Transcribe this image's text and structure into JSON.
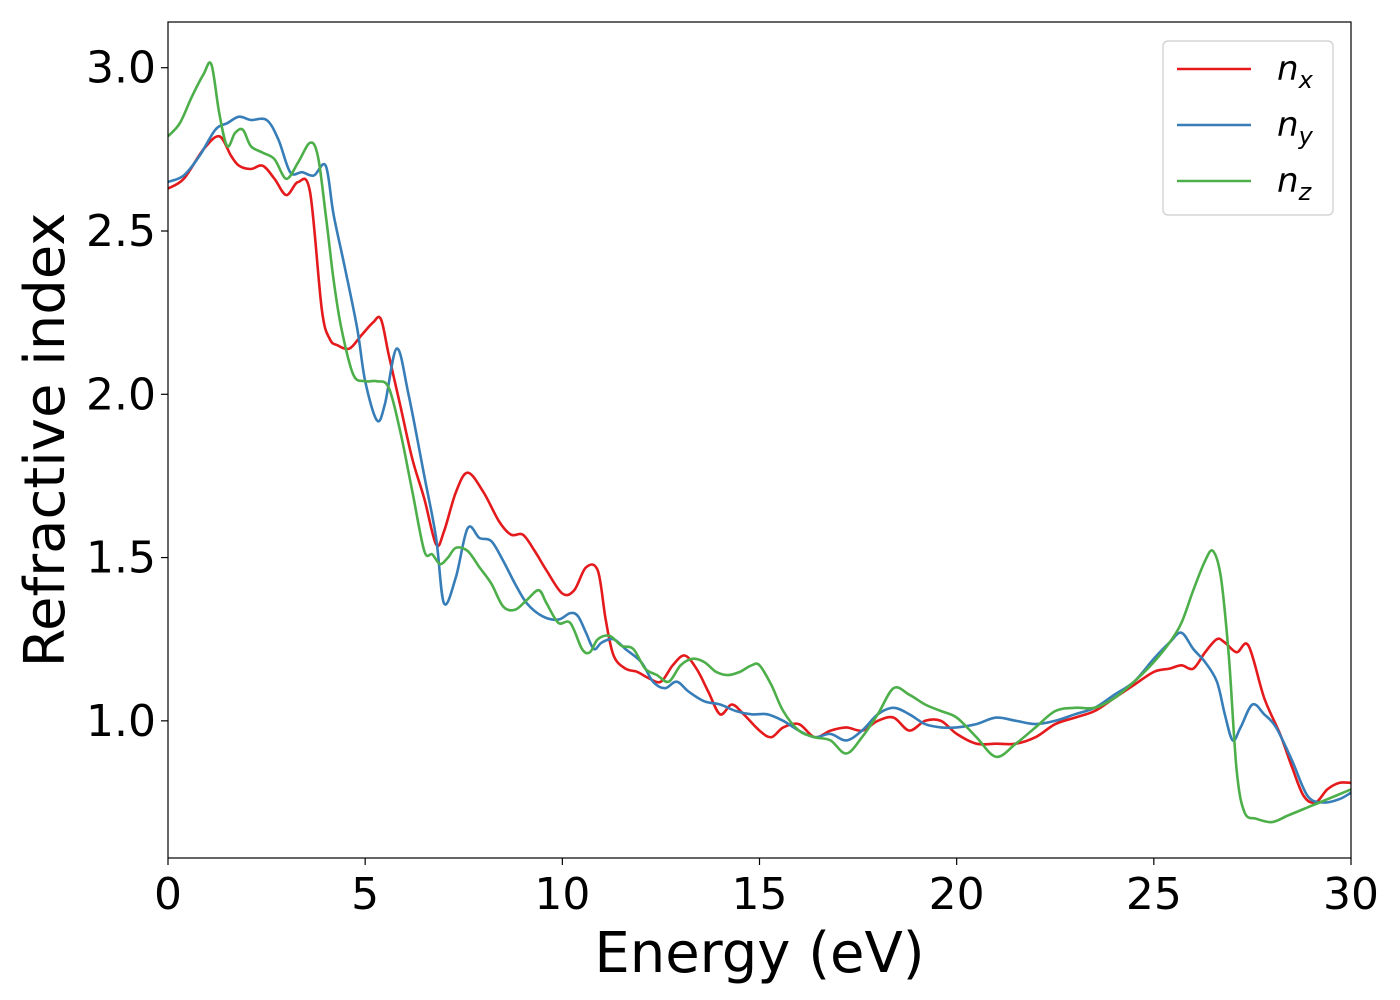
{
  "chart_data": {
    "type": "line",
    "xlabel": "Energy (eV)",
    "ylabel": "Refractive index",
    "xlim": [
      0,
      30
    ],
    "ylim": [
      0.58,
      3.14
    ],
    "xticks": [
      0,
      5,
      10,
      15,
      20,
      25,
      30
    ],
    "xtick_labels": [
      "0",
      "5",
      "10",
      "15",
      "20",
      "25",
      "30"
    ],
    "yticks": [
      1.0,
      1.5,
      2.0,
      2.5,
      3.0
    ],
    "ytick_labels": [
      "1.0",
      "1.5",
      "2.0",
      "2.5",
      "3.0"
    ],
    "grid": false,
    "legend_position": "top-right",
    "series": [
      {
        "name": "n",
        "subscript": "x",
        "color": "#e41a1c",
        "x": [
          0,
          0.4,
          0.9,
          1.3,
          1.6,
          1.8,
          2.1,
          2.4,
          2.7,
          3.0,
          3.3,
          3.6,
          3.9,
          4.1,
          4.3,
          4.6,
          4.9,
          5.2,
          5.4,
          5.6,
          5.9,
          6.2,
          6.5,
          6.8,
          7.0,
          7.3,
          7.6,
          8.0,
          8.4,
          8.7,
          9.0,
          9.3,
          9.6,
          10.0,
          10.3,
          10.6,
          10.9,
          11.1,
          11.3,
          11.6,
          11.9,
          12.2,
          12.5,
          12.8,
          13.1,
          13.4,
          13.7,
          14.0,
          14.3,
          14.6,
          15.0,
          15.3,
          15.6,
          16.0,
          16.4,
          16.8,
          17.2,
          17.6,
          18.0,
          18.4,
          18.8,
          19.2,
          19.6,
          20.0,
          20.5,
          21.0,
          21.5,
          22.0,
          22.5,
          23.0,
          23.5,
          24.0,
          24.5,
          25.0,
          25.4,
          25.7,
          26.0,
          26.3,
          26.6,
          26.8,
          27.1,
          27.4,
          27.8,
          28.2,
          28.5,
          28.8,
          29.1,
          29.4,
          29.7,
          30.0
        ],
        "y": [
          2.63,
          2.66,
          2.75,
          2.79,
          2.73,
          2.7,
          2.69,
          2.7,
          2.66,
          2.61,
          2.65,
          2.62,
          2.26,
          2.17,
          2.15,
          2.14,
          2.18,
          2.22,
          2.23,
          2.12,
          1.96,
          1.8,
          1.68,
          1.54,
          1.58,
          1.7,
          1.76,
          1.7,
          1.61,
          1.57,
          1.57,
          1.52,
          1.46,
          1.39,
          1.4,
          1.47,
          1.46,
          1.31,
          1.2,
          1.16,
          1.15,
          1.13,
          1.12,
          1.17,
          1.2,
          1.16,
          1.09,
          1.02,
          1.05,
          1.02,
          0.97,
          0.95,
          0.98,
          0.99,
          0.95,
          0.97,
          0.98,
          0.97,
          1.0,
          1.01,
          0.97,
          1.0,
          1.0,
          0.96,
          0.93,
          0.93,
          0.93,
          0.95,
          0.99,
          1.01,
          1.03,
          1.07,
          1.11,
          1.15,
          1.16,
          1.17,
          1.16,
          1.21,
          1.25,
          1.24,
          1.21,
          1.23,
          1.07,
          0.96,
          0.86,
          0.77,
          0.75,
          0.79,
          0.81,
          0.81
        ]
      },
      {
        "name": "n",
        "subscript": "y",
        "color": "#377eb8",
        "x": [
          0,
          0.4,
          0.8,
          1.2,
          1.5,
          1.8,
          2.1,
          2.5,
          2.8,
          3.1,
          3.4,
          3.7,
          4.0,
          4.2,
          4.5,
          4.8,
          5.0,
          5.3,
          5.5,
          5.8,
          6.1,
          6.5,
          6.8,
          7.0,
          7.3,
          7.6,
          7.9,
          8.2,
          8.5,
          8.8,
          9.1,
          9.5,
          9.9,
          10.2,
          10.4,
          10.6,
          10.8,
          11.0,
          11.3,
          11.6,
          12.0,
          12.3,
          12.6,
          12.9,
          13.2,
          13.6,
          14.0,
          14.4,
          14.8,
          15.2,
          15.6,
          16.0,
          16.4,
          16.8,
          17.2,
          17.6,
          18.0,
          18.4,
          18.8,
          19.2,
          19.6,
          20.0,
          20.5,
          21.0,
          21.5,
          22.0,
          22.5,
          23.0,
          23.5,
          24.0,
          24.5,
          25.0,
          25.4,
          25.7,
          26.0,
          26.3,
          26.6,
          26.8,
          27.0,
          27.2,
          27.5,
          27.8,
          28.1,
          28.5,
          28.9,
          29.3,
          29.7,
          30.0
        ],
        "y": [
          2.65,
          2.67,
          2.73,
          2.81,
          2.83,
          2.85,
          2.84,
          2.84,
          2.78,
          2.68,
          2.68,
          2.67,
          2.7,
          2.55,
          2.38,
          2.2,
          2.04,
          1.92,
          1.97,
          2.14,
          2.0,
          1.75,
          1.56,
          1.36,
          1.44,
          1.59,
          1.56,
          1.55,
          1.49,
          1.42,
          1.36,
          1.32,
          1.31,
          1.33,
          1.32,
          1.27,
          1.22,
          1.24,
          1.25,
          1.22,
          1.18,
          1.12,
          1.1,
          1.12,
          1.09,
          1.06,
          1.05,
          1.03,
          1.02,
          1.02,
          1.0,
          0.97,
          0.95,
          0.96,
          0.94,
          0.97,
          1.02,
          1.04,
          1.02,
          0.99,
          0.98,
          0.98,
          0.99,
          1.01,
          1.0,
          0.99,
          1.0,
          1.02,
          1.04,
          1.08,
          1.12,
          1.19,
          1.24,
          1.27,
          1.22,
          1.18,
          1.12,
          1.02,
          0.94,
          0.98,
          1.05,
          1.02,
          0.98,
          0.88,
          0.77,
          0.75,
          0.76,
          0.78
        ]
      },
      {
        "name": "n",
        "subscript": "z",
        "color": "#4daf4a",
        "x": [
          0,
          0.3,
          0.6,
          0.9,
          1.1,
          1.3,
          1.5,
          1.7,
          1.9,
          2.1,
          2.4,
          2.7,
          3.0,
          3.3,
          3.6,
          3.8,
          4.0,
          4.2,
          4.4,
          4.7,
          5.0,
          5.3,
          5.6,
          5.9,
          6.2,
          6.5,
          6.7,
          6.9,
          7.1,
          7.3,
          7.6,
          7.9,
          8.2,
          8.5,
          8.8,
          9.1,
          9.4,
          9.6,
          9.9,
          10.2,
          10.5,
          10.7,
          10.9,
          11.2,
          11.5,
          11.8,
          12.1,
          12.4,
          12.7,
          13.0,
          13.3,
          13.6,
          13.9,
          14.2,
          14.5,
          14.8,
          15.0,
          15.3,
          15.6,
          16.0,
          16.4,
          16.8,
          17.2,
          17.6,
          18.0,
          18.4,
          18.8,
          19.2,
          19.6,
          20.0,
          20.5,
          21.0,
          21.5,
          22.0,
          22.5,
          23.0,
          23.5,
          24.0,
          24.5,
          25.0,
          25.4,
          25.7,
          26.0,
          26.3,
          26.5,
          26.7,
          26.9,
          27.1,
          27.3,
          27.6,
          28.0,
          28.4,
          28.8,
          29.2,
          29.6,
          30.0
        ],
        "y": [
          2.79,
          2.83,
          2.91,
          2.98,
          3.01,
          2.86,
          2.76,
          2.8,
          2.81,
          2.76,
          2.74,
          2.72,
          2.66,
          2.71,
          2.77,
          2.73,
          2.55,
          2.35,
          2.2,
          2.06,
          2.04,
          2.04,
          2.02,
          1.88,
          1.7,
          1.52,
          1.51,
          1.48,
          1.5,
          1.53,
          1.52,
          1.47,
          1.42,
          1.35,
          1.34,
          1.37,
          1.4,
          1.36,
          1.3,
          1.3,
          1.22,
          1.21,
          1.25,
          1.26,
          1.23,
          1.22,
          1.16,
          1.14,
          1.12,
          1.17,
          1.19,
          1.18,
          1.15,
          1.14,
          1.15,
          1.17,
          1.17,
          1.11,
          1.03,
          0.97,
          0.95,
          0.94,
          0.9,
          0.95,
          1.02,
          1.1,
          1.08,
          1.05,
          1.03,
          1.01,
          0.95,
          0.89,
          0.93,
          0.98,
          1.03,
          1.04,
          1.04,
          1.07,
          1.12,
          1.18,
          1.24,
          1.3,
          1.4,
          1.49,
          1.52,
          1.44,
          1.2,
          0.85,
          0.72,
          0.7,
          0.69,
          0.71,
          0.73,
          0.75,
          0.77,
          0.79
        ]
      }
    ]
  }
}
